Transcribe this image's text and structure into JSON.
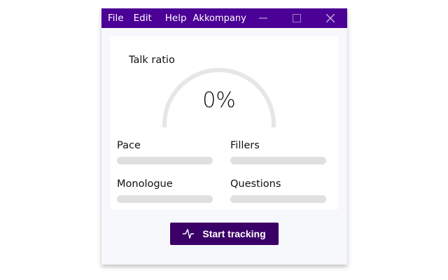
{
  "menu": {
    "file": "File",
    "edit": "Edit",
    "help": "Help",
    "app": "Akkompany"
  },
  "window_controls": [
    "minimize-icon",
    "maximize-icon",
    "close-icon"
  ],
  "talk_ratio": {
    "title": "Talk ratio",
    "value_label": "0%",
    "value_percent": 0
  },
  "metrics": [
    {
      "label": "Pace",
      "progress": 0
    },
    {
      "label": "Fillers",
      "progress": 0
    },
    {
      "label": "Monologue",
      "progress": 0
    },
    {
      "label": "Questions",
      "progress": 0
    }
  ],
  "button": {
    "label": "Start tracking",
    "icon": "activity-pulse-icon"
  },
  "colors": {
    "titlebar": "#4b0096",
    "button": "#3a0068",
    "gauge_track": "#e6e6e6",
    "gauge_dot": "#4b1a86"
  }
}
